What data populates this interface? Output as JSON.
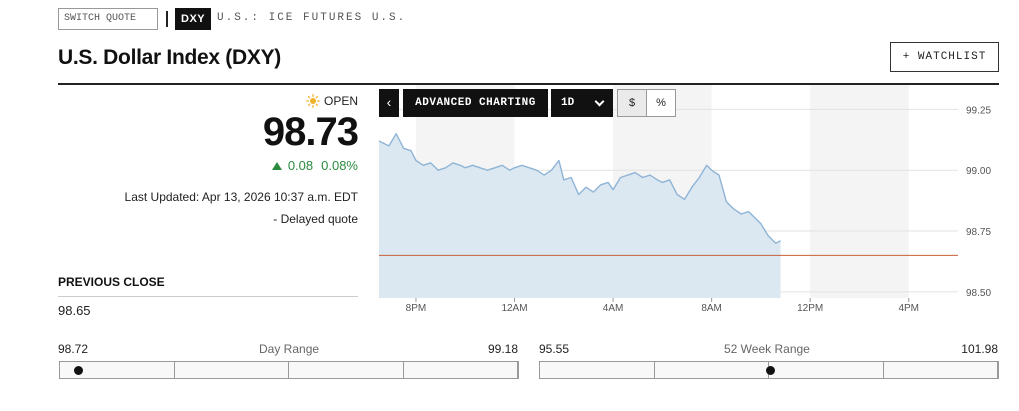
{
  "header": {
    "switch_quote_placeholder": "SWITCH QUOTE",
    "ticker": "DXY",
    "exchange": "U.S.: ICE FUTURES U.S.",
    "title": "U.S. Dollar Index (DXY)",
    "watchlist_label": "+ WATCHLIST"
  },
  "quote": {
    "status": "OPEN",
    "status_icon": "sun-icon",
    "price": "98.73",
    "change": "0.08",
    "change_percent": "0.08%",
    "change_direction": "up",
    "last_updated": "Last Updated: Apr 13, 2026 10:37 a.m. EDT",
    "delayed": "- Delayed quote",
    "previous_close_label": "PREVIOUS CLOSE",
    "previous_close": "98.65"
  },
  "toolbar": {
    "prev_icon": "chevron-left-icon",
    "advanced_label": "ADVANCED CHARTING",
    "period_label": "1D",
    "dollar_label": "$",
    "percent_label": "%"
  },
  "chart_data": {
    "type": "area",
    "x_tick_labels": [
      "8PM",
      "12AM",
      "4AM",
      "8AM",
      "12PM",
      "4PM"
    ],
    "y_tick_labels": [
      "99.25",
      "99.00",
      "98.75",
      "98.50"
    ],
    "ylim": [
      98.475,
      99.35
    ],
    "x_hours_visible": [
      18.5,
      42
    ],
    "previous_close_line": 98.65,
    "series": [
      {
        "x_hours": [
          18.5,
          18.9,
          19.2,
          19.5,
          19.8,
          20.0,
          20.3,
          20.6,
          20.9,
          21.2,
          21.5,
          21.8,
          22.0,
          22.3,
          22.6,
          22.9,
          23.2,
          23.5,
          23.8,
          24.0,
          24.3,
          24.6,
          24.9,
          25.2,
          25.5,
          25.8,
          26.0,
          26.3,
          26.6,
          26.9,
          27.2,
          27.5,
          27.8,
          28.0,
          28.3,
          28.6,
          28.9,
          29.2,
          29.5,
          29.8,
          30.0,
          30.3,
          30.6,
          30.9,
          31.2,
          31.5,
          31.8,
          32.0,
          32.3,
          32.6,
          32.9,
          33.2,
          33.5,
          33.8,
          34.0,
          34.3,
          34.6,
          34.8
        ],
        "values": [
          99.12,
          99.1,
          99.15,
          99.09,
          99.08,
          99.04,
          99.02,
          99.03,
          99.0,
          99.01,
          99.03,
          99.02,
          99.01,
          99.02,
          99.01,
          99.0,
          99.01,
          99.02,
          99.0,
          99.01,
          99.02,
          99.01,
          99.0,
          98.98,
          99.0,
          99.04,
          98.96,
          98.97,
          98.9,
          98.93,
          98.91,
          98.94,
          98.95,
          98.92,
          98.97,
          98.98,
          98.99,
          98.97,
          98.98,
          98.96,
          98.95,
          98.96,
          98.9,
          98.88,
          98.93,
          98.97,
          99.02,
          99.0,
          98.98,
          98.87,
          98.84,
          98.82,
          98.83,
          98.8,
          98.78,
          98.73,
          98.7,
          98.71
        ]
      }
    ],
    "line_color": "#8fb4d6",
    "fill_color": "#dce8f1",
    "prev_close_color": "#c8603a",
    "grid": true
  },
  "ranges": {
    "day": {
      "low": "98.72",
      "title": "Day Range",
      "high": "99.18",
      "marker_fraction": 0.04
    },
    "week52": {
      "low": "95.55",
      "title": "52 Week Range",
      "high": "101.98",
      "marker_fraction": 0.5
    }
  }
}
